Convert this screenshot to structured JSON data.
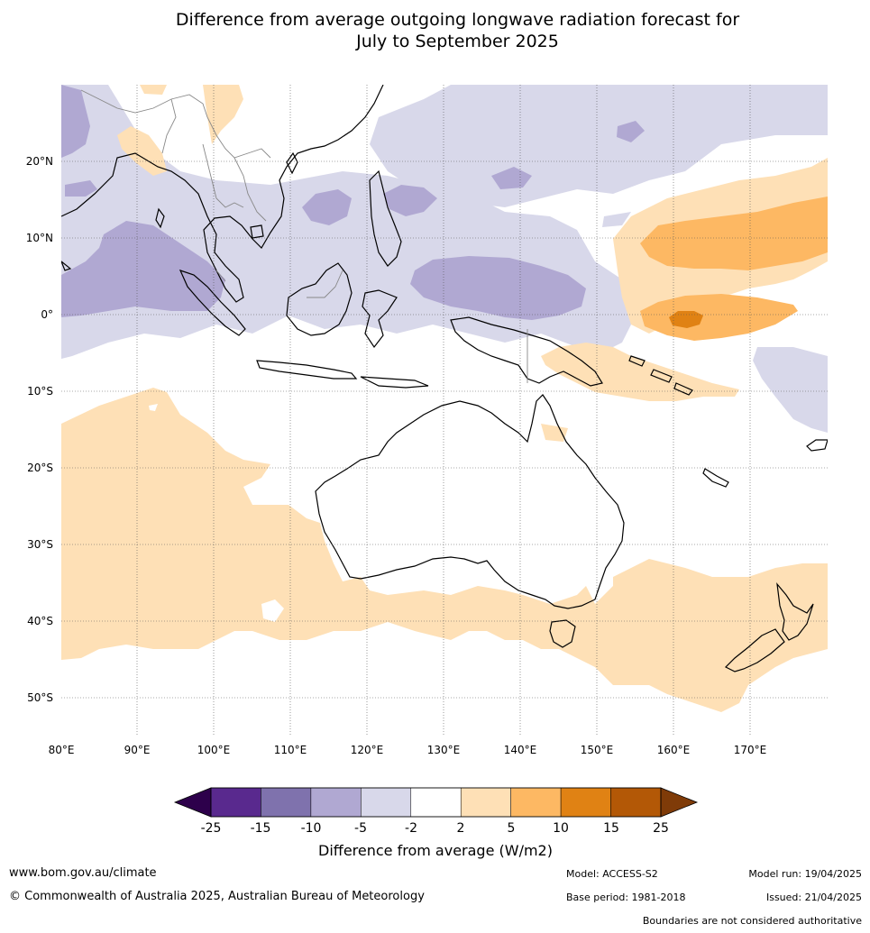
{
  "title": {
    "line1": "Difference from average outgoing longwave radiation forecast for",
    "line2": "July to September 2025"
  },
  "map": {
    "lon_labels": [
      "80°E",
      "90°E",
      "100°E",
      "110°E",
      "120°E",
      "130°E",
      "140°E",
      "150°E",
      "160°E",
      "170°E"
    ],
    "lat_labels": [
      "20°N",
      "10°N",
      "0°",
      "10°S",
      "20°S",
      "30°S",
      "40°S",
      "50°S"
    ],
    "extent": {
      "lon": [
        80,
        180
      ],
      "lat": [
        -55,
        30
      ]
    }
  },
  "legend": {
    "bins": [
      {
        "from": "-25",
        "to": "-15",
        "color": "#59298e"
      },
      {
        "from": "-15",
        "to": "-10",
        "color": "#7f72ad"
      },
      {
        "from": "-10",
        "to": "-5",
        "color": "#b0a8d2"
      },
      {
        "from": "-5",
        "to": "-2",
        "color": "#d8d8ea"
      },
      {
        "from": "-2",
        "to": "2",
        "color": "#ffffff"
      },
      {
        "from": "2",
        "to": "5",
        "color": "#fee0b6"
      },
      {
        "from": "5",
        "to": "10",
        "color": "#fdb863"
      },
      {
        "from": "10",
        "to": "15",
        "color": "#e08214"
      },
      {
        "from": "15",
        "to": "25",
        "color": "#b35806"
      }
    ],
    "low_extend_color": "#2d004b",
    "high_extend_color": "#7f3b08",
    "tick_labels": [
      "-25",
      "-15",
      "-10",
      "-5",
      "-2",
      "2",
      "5",
      "10",
      "15",
      "25"
    ],
    "axis_label": "Difference from average (W/m2)"
  },
  "footer": {
    "website": "www.bom.gov.au/climate",
    "copyright": "© Commonwealth of Australia 2025, Australian Bureau of Meteorology",
    "model": "Model: ACCESS-S2",
    "model_run": "Model run: 19/04/2025",
    "base_period": "Base period: 1981-2018",
    "issued": "Issued: 21/04/2025",
    "disclaimer": "Boundaries are not considered authoritative"
  }
}
